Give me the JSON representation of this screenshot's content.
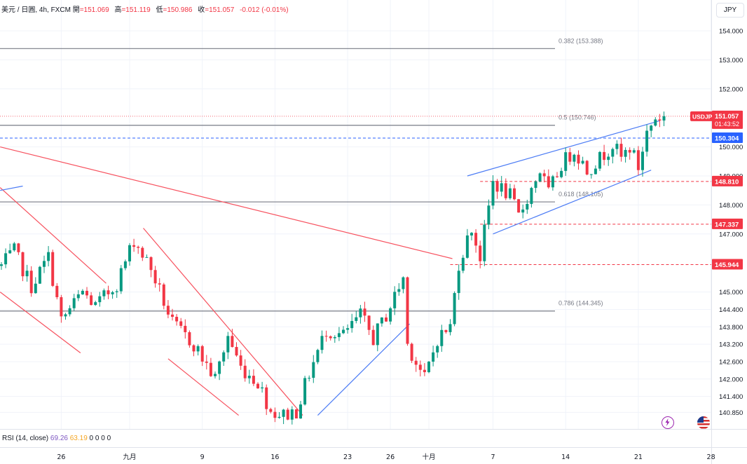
{
  "header": {
    "symbol": "美元 / 日圓, 4h, FXCM",
    "open_label": "開",
    "open": "=151.069",
    "high_label": "高",
    "high": "=151.119",
    "low_label": "低",
    "low": "=150.986",
    "close_label": "收",
    "close": "=151.057",
    "change": "-0.012 (-0.01%)"
  },
  "currency_button": "JPY",
  "rsi_legend": {
    "label": "RSI (14, close)",
    "value1": "69.26",
    "value2": "63.19",
    "zeros": "0 0 0 0"
  },
  "colors": {
    "up": "#089981",
    "down": "#f23645",
    "blue": "#2962ff",
    "grid": "#f0f3fa",
    "text": "#131722"
  },
  "chart_data": {
    "type": "candlestick",
    "symbol": "USDJPY",
    "timeframe": "4h",
    "ylim": [
      140.7,
      154.4
    ],
    "y_ticks": [
      "154.000",
      "153.000",
      "152.000",
      "150.000",
      "149.000",
      "148.000",
      "147.000",
      "145.000",
      "144.400",
      "143.800",
      "143.200",
      "142.600",
      "142.000",
      "141.400",
      "140.850"
    ],
    "x_ticks": [
      {
        "label": "26",
        "i": 14
      },
      {
        "label": "九月",
        "i": 30
      },
      {
        "label": "9",
        "i": 47
      },
      {
        "label": "16",
        "i": 64
      },
      {
        "label": "23",
        "i": 81
      },
      {
        "label": "26",
        "i": 91
      },
      {
        "label": "十月",
        "i": 100
      },
      {
        "label": "7",
        "i": 115
      },
      {
        "label": "14",
        "i": 132
      },
      {
        "label": "21",
        "i": 149
      },
      {
        "label": "28",
        "i": 166
      }
    ],
    "path": [
      [
        0,
        145.9
      ],
      [
        3,
        146.4
      ],
      [
        7,
        145.2
      ],
      [
        11,
        146.2
      ],
      [
        14,
        144.0
      ],
      [
        19,
        145.0
      ],
      [
        22,
        144.5
      ],
      [
        27,
        145.3
      ],
      [
        31,
        146.8
      ],
      [
        35,
        145.8
      ],
      [
        40,
        143.9
      ],
      [
        45,
        143.2
      ],
      [
        50,
        142.0
      ],
      [
        53,
        143.5
      ],
      [
        56,
        142.4
      ],
      [
        60,
        141.9
      ],
      [
        63,
        140.9
      ],
      [
        66,
        140.75
      ],
      [
        69,
        140.9
      ],
      [
        72,
        142.2
      ],
      [
        76,
        143.7
      ],
      [
        80,
        143.5
      ],
      [
        84,
        144.2
      ],
      [
        87,
        143.4
      ],
      [
        90,
        144.2
      ],
      [
        94,
        145.5
      ],
      [
        95,
        143.2
      ],
      [
        99,
        142.0
      ],
      [
        102,
        143.4
      ],
      [
        105,
        143.8
      ],
      [
        107,
        146.0
      ],
      [
        110,
        147.2
      ],
      [
        112,
        146.2
      ],
      [
        115,
        148.8
      ],
      [
        119,
        148.3
      ],
      [
        121,
        147.6
      ],
      [
        126,
        149.2
      ],
      [
        128,
        148.4
      ],
      [
        131,
        149.4
      ],
      [
        134,
        149.9
      ],
      [
        137,
        149.2
      ],
      [
        140,
        149.6
      ],
      [
        143,
        150.1
      ],
      [
        145,
        149.6
      ],
      [
        147,
        150.0
      ],
      [
        149,
        149.3
      ],
      [
        151,
        150.5
      ],
      [
        153,
        151.0
      ],
      [
        155,
        151.06
      ]
    ],
    "horizontal_levels": [
      {
        "label": "0.382 (153.388)",
        "value": 153.388,
        "style": "fib"
      },
      {
        "label": "0.5 (150.746)",
        "value": 150.746,
        "style": "fib"
      },
      {
        "label": "0.618 (148.105)",
        "value": 148.105,
        "style": "fib"
      },
      {
        "label": "0.786 (144.345)",
        "value": 144.345,
        "style": "fib"
      },
      {
        "label": "150.304",
        "value": 150.304,
        "style": "blue-dashed"
      },
      {
        "label": "148.810",
        "value": 148.81,
        "style": "red-dashed"
      },
      {
        "label": "147.337",
        "value": 147.337,
        "style": "red-dashed"
      },
      {
        "label": "145.944",
        "value": 145.944,
        "style": "red-dashed"
      }
    ],
    "price_tag": {
      "symbol": "USDJPY",
      "value": "151.057",
      "countdown": "01:43:52"
    }
  }
}
